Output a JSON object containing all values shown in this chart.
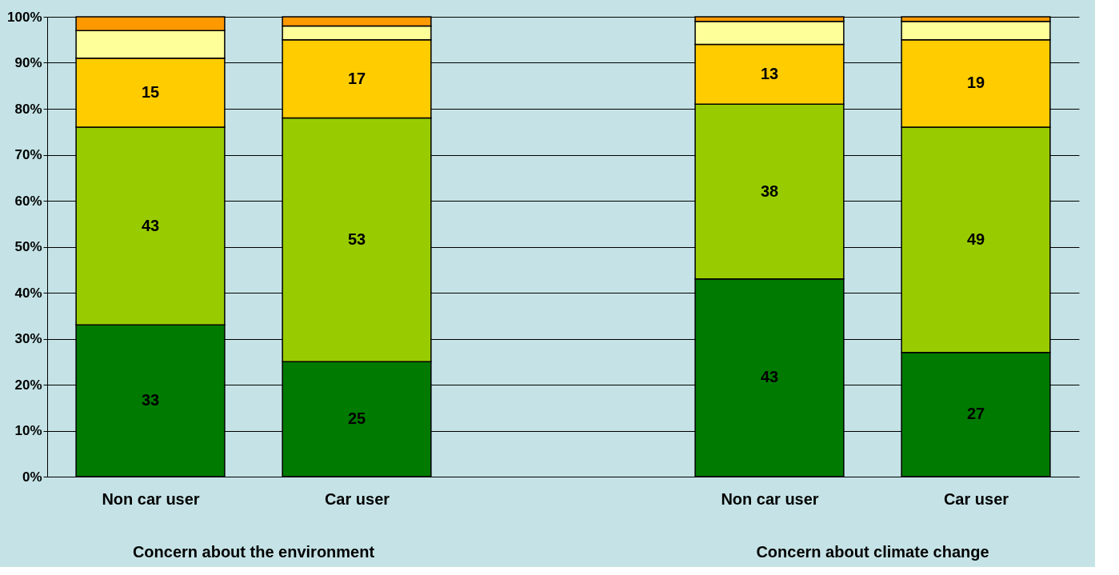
{
  "chart_data": {
    "type": "bar",
    "stacked": true,
    "categories": [
      "Non car user",
      "Car user",
      null,
      "Non car user",
      "Car user"
    ],
    "series": [
      {
        "color": "#007a00",
        "values": [
          33,
          25,
          null,
          43,
          27
        ],
        "value_labels": [
          "33",
          "25",
          null,
          "43",
          "27"
        ]
      },
      {
        "color": "#99cc00",
        "values": [
          43,
          53,
          null,
          38,
          49
        ],
        "value_labels": [
          "43",
          "53",
          null,
          "38",
          "49"
        ]
      },
      {
        "color": "#ffcc00",
        "values": [
          15,
          17,
          null,
          13,
          19
        ],
        "value_labels": [
          "15",
          "17",
          null,
          "13",
          "19"
        ]
      },
      {
        "color": "#ffff99",
        "values": [
          6,
          3,
          null,
          5,
          4
        ]
      },
      {
        "color": "#ff9900",
        "values": [
          3,
          2,
          null,
          1,
          1
        ]
      }
    ],
    "ylim": [
      0,
      100
    ],
    "yticks": [
      {
        "value": 0,
        "label": "0%"
      },
      {
        "value": 10,
        "label": "10%"
      },
      {
        "value": 20,
        "label": "20%"
      },
      {
        "value": 30,
        "label": "30%"
      },
      {
        "value": 40,
        "label": "40%"
      },
      {
        "value": 50,
        "label": "50%"
      },
      {
        "value": 60,
        "label": "60%"
      },
      {
        "value": 70,
        "label": "70%"
      },
      {
        "value": 80,
        "label": "80%"
      },
      {
        "value": 90,
        "label": "90%"
      },
      {
        "value": 100,
        "label": "100%"
      }
    ],
    "grid": "y",
    "annotations": [
      "Concern about the environment",
      "Concern about climate change"
    ]
  }
}
